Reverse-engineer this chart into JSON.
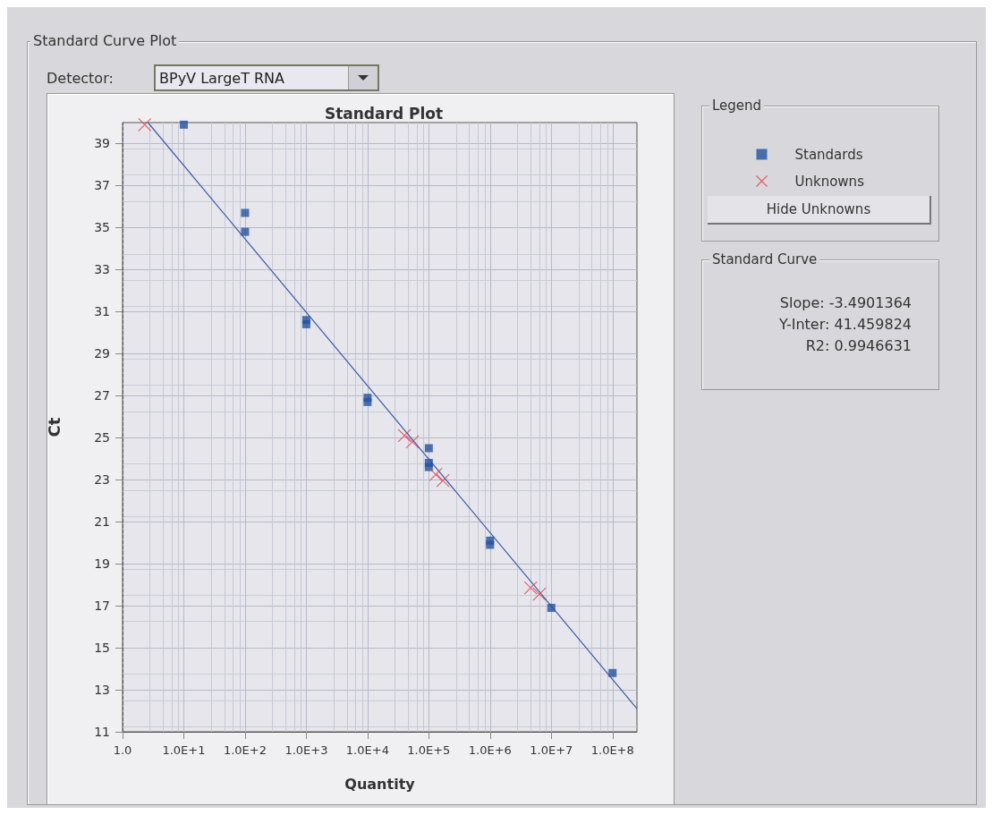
{
  "chart_data": {
    "type": "scatter",
    "title": "Standard Plot",
    "xlabel": "Quantity",
    "ylabel": "Ct",
    "legend_title": "Legend",
    "legend": "right",
    "log": "x",
    "grid": true,
    "xlim": [
      1,
      250000000
    ],
    "xticks": [
      {
        "value": 1,
        "label": "1.0"
      },
      {
        "value": 10,
        "label": "1.0E+1"
      },
      {
        "value": 100,
        "label": "1.0E+2"
      },
      {
        "value": 1000,
        "label": "1.0E+3"
      },
      {
        "value": 10000,
        "label": "1.0E+4"
      },
      {
        "value": 100000,
        "label": "1.0E+5"
      },
      {
        "value": 1000000,
        "label": "1.0E+6"
      },
      {
        "value": 10000000,
        "label": "1.0E+7"
      },
      {
        "value": 100000000,
        "label": "1.0E+8"
      }
    ],
    "ylim": [
      11,
      40
    ],
    "yticks": [
      11,
      13,
      15,
      17,
      19,
      21,
      23,
      25,
      27,
      29,
      31,
      33,
      35,
      37,
      39
    ],
    "series": [
      {
        "name": "Standards",
        "type": "scatter",
        "marker": "square",
        "color": "#2452a0",
        "x": [
          10,
          100,
          100,
          1000,
          1000,
          10000,
          10000,
          100000,
          100000,
          100000,
          1000000,
          1000000,
          10000000,
          100000000
        ],
        "values": [
          39.9,
          35.7,
          34.8,
          30.6,
          30.4,
          26.9,
          26.7,
          24.5,
          23.8,
          23.6,
          20.1,
          19.9,
          16.9,
          13.8
        ]
      },
      {
        "name": "Unknowns",
        "type": "scatter",
        "marker": "cross",
        "color": "#e0404c",
        "x": [
          2.3,
          40000,
          54000,
          130000,
          170000,
          4600000,
          6400000
        ],
        "values": [
          39.9,
          25.1,
          24.8,
          23.25,
          22.96,
          17.85,
          17.55
        ]
      },
      {
        "type": "line",
        "color": "#3a5aa8",
        "marker": "none",
        "line_style": "solid",
        "x": [
          2.6,
          250000000
        ],
        "values": [
          40.0,
          12.1
        ]
      }
    ],
    "annotations": [
      "Standard Curve Plot",
      "Detector:",
      "BPyV LargeT RNA",
      "Hide Unknowns",
      "Standard Curve",
      "Slope: -3.4901364",
      "Y-Inter: 41.459824",
      "R2: 0.9946631"
    ]
  }
}
